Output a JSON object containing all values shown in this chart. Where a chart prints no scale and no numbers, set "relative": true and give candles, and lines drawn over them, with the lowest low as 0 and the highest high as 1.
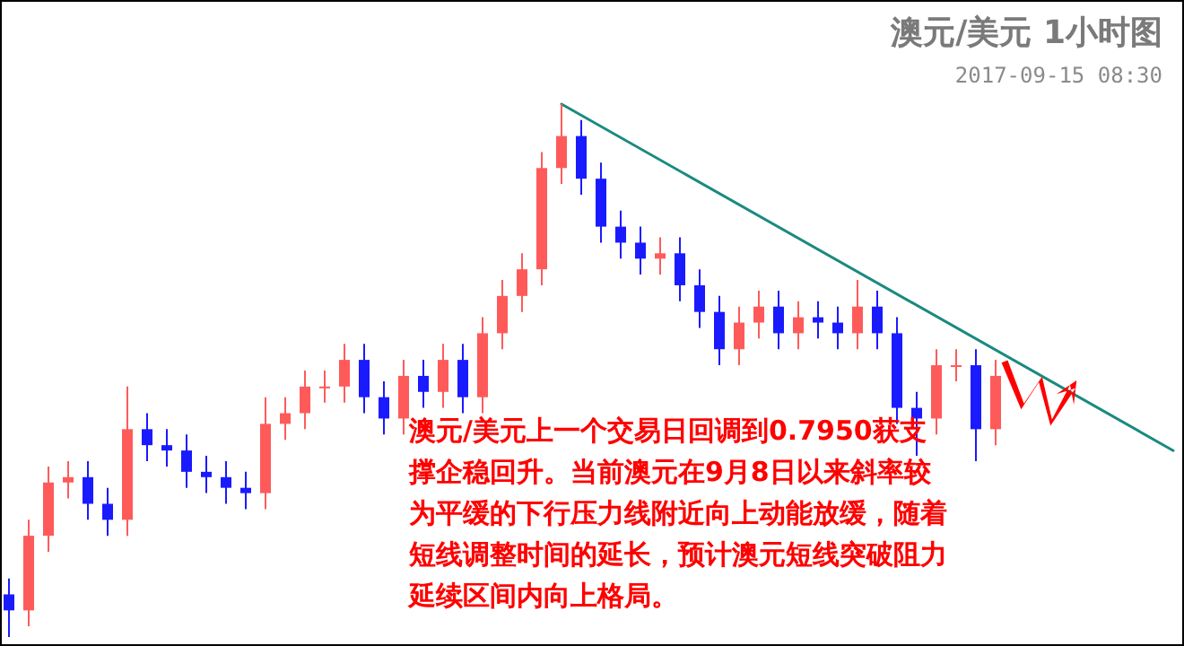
{
  "chart_data": {
    "type": "candlestick",
    "title": "澳元/美元 1小时图",
    "subtitle": "2017-09-15 08:30",
    "relative": true,
    "categories": [
      null,
      null,
      null,
      null,
      null,
      null,
      null,
      null,
      null,
      null,
      null,
      null,
      null,
      null,
      null,
      null,
      null,
      null,
      null,
      null,
      null,
      null,
      null,
      null,
      null,
      null,
      null,
      null,
      null,
      null,
      null,
      null,
      null,
      null,
      null,
      null,
      null,
      null,
      null,
      null,
      null,
      null,
      null,
      null,
      null,
      null,
      null,
      null,
      null,
      null,
      null,
      null,
      null,
      null,
      null,
      null,
      null,
      null,
      null,
      null
    ],
    "ohlc": [
      [
        0.08,
        0.11,
        0,
        0.05
      ],
      [
        0.05,
        0.22,
        0.02,
        0.19
      ],
      [
        0.19,
        0.32,
        0.16,
        0.29
      ],
      [
        0.29,
        0.33,
        0.26,
        0.3
      ],
      [
        0.3,
        0.33,
        0.22,
        0.25
      ],
      [
        0.25,
        0.28,
        0.19,
        0.22
      ],
      [
        0.22,
        0.47,
        0.19,
        0.39
      ],
      [
        0.39,
        0.42,
        0.33,
        0.36
      ],
      [
        0.36,
        0.39,
        0.32,
        0.35
      ],
      [
        0.35,
        0.38,
        0.28,
        0.31
      ],
      [
        0.31,
        0.34,
        0.27,
        0.3
      ],
      [
        0.3,
        0.33,
        0.25,
        0.28
      ],
      [
        0.28,
        0.31,
        0.24,
        0.27
      ],
      [
        0.27,
        0.45,
        0.24,
        0.4
      ],
      [
        0.4,
        0.45,
        0.37,
        0.42
      ],
      [
        0.42,
        0.5,
        0.39,
        0.47
      ],
      [
        0.47,
        0.5,
        0.44,
        0.47
      ],
      [
        0.47,
        0.55,
        0.44,
        0.52
      ],
      [
        0.52,
        0.55,
        0.42,
        0.45
      ],
      [
        0.45,
        0.48,
        0.38,
        0.41
      ],
      [
        0.41,
        0.52,
        0.38,
        0.49
      ],
      [
        0.49,
        0.52,
        0.43,
        0.46
      ],
      [
        0.46,
        0.55,
        0.43,
        0.52
      ],
      [
        0.52,
        0.55,
        0.42,
        0.45
      ],
      [
        0.45,
        0.6,
        0.42,
        0.57
      ],
      [
        0.57,
        0.67,
        0.54,
        0.64
      ],
      [
        0.64,
        0.72,
        0.61,
        0.69
      ],
      [
        0.69,
        0.91,
        0.66,
        0.88
      ],
      [
        0.88,
        1,
        0.85,
        0.94
      ],
      [
        0.94,
        0.97,
        0.83,
        0.86
      ],
      [
        0.86,
        0.89,
        0.74,
        0.77
      ],
      [
        0.77,
        0.8,
        0.71,
        0.74
      ],
      [
        0.74,
        0.77,
        0.68,
        0.71
      ],
      [
        0.71,
        0.75,
        0.68,
        0.72
      ],
      [
        0.72,
        0.75,
        0.63,
        0.66
      ],
      [
        0.66,
        0.69,
        0.58,
        0.61
      ],
      [
        0.61,
        0.64,
        0.51,
        0.54
      ],
      [
        0.54,
        0.62,
        0.51,
        0.59
      ],
      [
        0.59,
        0.65,
        0.56,
        0.62
      ],
      [
        0.62,
        0.65,
        0.54,
        0.57
      ],
      [
        0.57,
        0.63,
        0.54,
        0.6
      ],
      [
        0.6,
        0.63,
        0.56,
        0.59
      ],
      [
        0.59,
        0.62,
        0.54,
        0.57
      ],
      [
        0.57,
        0.67,
        0.54,
        0.62
      ],
      [
        0.62,
        0.65,
        0.54,
        0.57
      ],
      [
        0.57,
        0.6,
        0.4,
        0.43
      ],
      [
        0.43,
        0.46,
        0.34,
        0.41
      ],
      [
        0.41,
        0.54,
        0.38,
        0.51
      ],
      [
        0.51,
        0.54,
        0.48,
        0.51
      ],
      [
        0.51,
        0.54,
        0.33,
        0.39
      ],
      [
        0.39,
        0.52,
        0.36,
        0.49
      ],
      null,
      null,
      null,
      null,
      null,
      null,
      null,
      null,
      null
    ],
    "colors": [
      "#1a1aff",
      "#ff5a5a",
      "#ff5a5a",
      "#ff5a5a",
      "#1a1aff",
      "#1a1aff",
      "#ff5a5a",
      "#1a1aff",
      "#1a1aff",
      "#1a1aff",
      "#1a1aff",
      "#1a1aff",
      "#1a1aff",
      "#ff5a5a",
      "#ff5a5a",
      "#ff5a5a",
      "#ff5a5a",
      "#ff5a5a",
      "#1a1aff",
      "#1a1aff",
      "#ff5a5a",
      "#1a1aff",
      "#ff5a5a",
      "#1a1aff",
      "#ff5a5a",
      "#ff5a5a",
      "#ff5a5a",
      "#ff5a5a",
      "#ff5a5a",
      "#1a1aff",
      "#1a1aff",
      "#1a1aff",
      "#1a1aff",
      "#ff5a5a",
      "#1a1aff",
      "#1a1aff",
      "#1a1aff",
      "#ff5a5a",
      "#ff5a5a",
      "#1a1aff",
      "#ff5a5a",
      "#1a1aff",
      "#1a1aff",
      "#ff5a5a",
      "#1a1aff",
      "#1a1aff",
      "#1a1aff",
      "#ff5a5a",
      "#ff5a5a",
      "#1a1aff",
      "#ff5a5a",
      null,
      null,
      null,
      null,
      null,
      null,
      null,
      null,
      null
    ],
    "series": [
      {
        "type": "line",
        "color": "#1a8a80",
        "values": [
          null,
          null,
          null,
          null,
          null,
          null,
          null,
          null,
          null,
          null,
          null,
          null,
          null,
          null,
          null,
          null,
          null,
          null,
          null,
          null,
          null,
          null,
          null,
          null,
          null,
          null,
          null,
          null,
          1,
          null,
          null,
          null,
          null,
          null,
          null,
          null,
          null,
          null,
          null,
          null,
          null,
          null,
          null,
          null,
          null,
          null,
          null,
          null,
          null,
          null,
          null,
          null,
          null,
          null,
          null,
          null,
          null,
          null,
          null,
          0.35
        ]
      }
    ],
    "annotations": [
      "澳元/美元上一个交易日回调到0.7950获支撑企稳回升。当前澳元在9月8日以来斜率较为平缓的下行压力线附近向上动能放缓，随着短线调整时间的延长，预计澳元短线突破阻力延续区间内向上格局。"
    ]
  }
}
